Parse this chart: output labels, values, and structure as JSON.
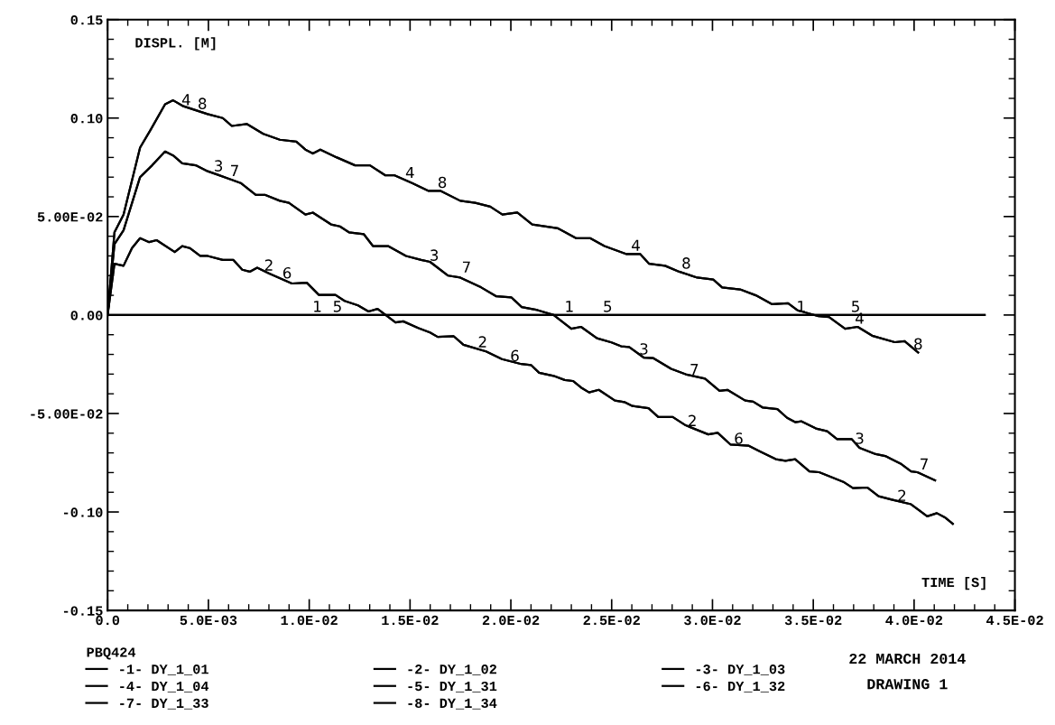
{
  "chart_data": {
    "type": "line",
    "ylabel": "DISPL. [M]",
    "xlabel": "TIME [S]",
    "legend_title": "PBQ424",
    "legend": "bottom",
    "grid": false,
    "marker": "none",
    "line_style": "solid",
    "xlim": [
      0,
      0.045
    ],
    "xticks": [
      {
        "value": 0,
        "label": "0.0"
      },
      {
        "value": 0.005,
        "label": "5.0E-03"
      },
      {
        "value": 0.01,
        "label": "1.0E-02"
      },
      {
        "value": 0.015,
        "label": "1.5E-02"
      },
      {
        "value": 0.02,
        "label": "2.0E-02"
      },
      {
        "value": 0.025,
        "label": "2.5E-02"
      },
      {
        "value": 0.03,
        "label": "3.0E-02"
      },
      {
        "value": 0.035,
        "label": "3.5E-02"
      },
      {
        "value": 0.04,
        "label": "4.0E-02"
      },
      {
        "value": 0.045,
        "label": "4.5E-02"
      }
    ],
    "ylim": [
      -0.15,
      0.15
    ],
    "yticks": [
      {
        "value": -0.15,
        "label": "-0.15"
      },
      {
        "value": -0.1,
        "label": "-0.10"
      },
      {
        "value": -0.05,
        "label": "-5.00E-02"
      },
      {
        "value": 0,
        "label": "0.00"
      },
      {
        "value": 0.05,
        "label": "5.00E-02"
      },
      {
        "value": 0.1,
        "label": "0.10"
      },
      {
        "value": 0.15,
        "label": "0.15"
      }
    ],
    "annotations": [
      "22 MARCH 2014",
      "DRAWING 1",
      {
        "text": "1",
        "x": 0.0104,
        "y": 0
      },
      {
        "text": "5",
        "x": 0.0114,
        "y": 0
      },
      {
        "text": "1",
        "x": 0.0229,
        "y": 0
      },
      {
        "text": "5",
        "x": 0.0248,
        "y": 0
      },
      {
        "text": "1",
        "x": 0.0344,
        "y": 0
      },
      {
        "text": "5",
        "x": 0.0371,
        "y": 0
      },
      {
        "text": "2",
        "x": 0.008,
        "y": 0.021
      },
      {
        "text": "6",
        "x": 0.0089,
        "y": 0.017
      },
      {
        "text": "2",
        "x": 0.0186,
        "y": -0.018
      },
      {
        "text": "6",
        "x": 0.0202,
        "y": -0.025
      },
      {
        "text": "2",
        "x": 0.029,
        "y": -0.058
      },
      {
        "text": "6",
        "x": 0.0313,
        "y": -0.067
      },
      {
        "text": "2",
        "x": 0.0394,
        "y": -0.096
      },
      {
        "text": "3",
        "x": 0.0055,
        "y": 0.0714
      },
      {
        "text": "7",
        "x": 0.0063,
        "y": 0.069
      },
      {
        "text": "3",
        "x": 0.0162,
        "y": 0.026
      },
      {
        "text": "7",
        "x": 0.0178,
        "y": 0.02
      },
      {
        "text": "3",
        "x": 0.0266,
        "y": -0.0216
      },
      {
        "text": "7",
        "x": 0.0291,
        "y": -0.032
      },
      {
        "text": "3",
        "x": 0.0373,
        "y": -0.067
      },
      {
        "text": "7",
        "x": 0.0405,
        "y": -0.08
      },
      {
        "text": "4",
        "x": 0.0039,
        "y": 0.105
      },
      {
        "text": "8",
        "x": 0.0047,
        "y": 0.103
      },
      {
        "text": "4",
        "x": 0.015,
        "y": 0.068
      },
      {
        "text": "8",
        "x": 0.0166,
        "y": 0.063
      },
      {
        "text": "4",
        "x": 0.0262,
        "y": 0.031
      },
      {
        "text": "8",
        "x": 0.0287,
        "y": 0.022
      },
      {
        "text": "4",
        "x": 0.0373,
        "y": -0.006
      },
      {
        "text": "8",
        "x": 0.0402,
        "y": -0.019
      }
    ],
    "series": [
      {
        "name": "-1- DY_1_01",
        "color": "#000000",
        "x": [
          0,
          0.0435
        ],
        "values": [
          0,
          0
        ]
      },
      {
        "name": "-2- DY_1_02",
        "color": "#000000",
        "x": [
          0,
          0.00034,
          0.00079,
          0.00121,
          0.00161,
          0.00206,
          0.00243,
          0.00333,
          0.0037,
          0.00407,
          0.00459,
          0.00496,
          0.00571,
          0.00623,
          0.00668,
          0.00705,
          0.00742,
          0.00802,
          0.00914,
          0.00988,
          0.01048,
          0.0113,
          0.01175,
          0.01242,
          0.01294,
          0.01339,
          0.01428,
          0.01466,
          0.0154,
          0.01599,
          0.01637,
          0.01717,
          0.01765,
          0.01877,
          0.01956,
          0.02052,
          0.021,
          0.0214,
          0.02212,
          0.02267,
          0.02308,
          0.02348,
          0.02388,
          0.02436,
          0.02516,
          0.02563,
          0.02603,
          0.02683,
          0.02731,
          0.02803,
          0.02867,
          0.02979,
          0.03026,
          0.0309,
          0.03178,
          0.03233,
          0.03314,
          0.03362,
          0.0341,
          0.03481,
          0.03529,
          0.03649,
          0.03697,
          0.03769,
          0.03824,
          0.03889,
          0.03985,
          0.04065,
          0.04113,
          0.04152,
          0.04192
        ],
        "values": [
          0,
          0.026,
          0.025,
          0.034,
          0.039,
          0.037,
          0.038,
          0.032,
          0.035,
          0.034,
          0.03,
          0.03,
          0.028,
          0.028,
          0.023,
          0.022,
          0.024,
          0.021,
          0.016,
          0.0164,
          0.0102,
          0.0102,
          0.0072,
          0.0049,
          0.0018,
          0.0031,
          -0.0038,
          -0.0032,
          -0.0066,
          -0.0089,
          -0.0111,
          -0.0108,
          -0.0151,
          -0.0185,
          -0.0224,
          -0.0249,
          -0.0254,
          -0.0293,
          -0.0309,
          -0.033,
          -0.0335,
          -0.0368,
          -0.0393,
          -0.038,
          -0.0434,
          -0.0442,
          -0.0462,
          -0.0473,
          -0.0518,
          -0.0518,
          -0.056,
          -0.0606,
          -0.0598,
          -0.0658,
          -0.0663,
          -0.0691,
          -0.0732,
          -0.074,
          -0.0732,
          -0.0794,
          -0.0798,
          -0.0847,
          -0.0879,
          -0.0876,
          -0.092,
          -0.0937,
          -0.0961,
          -0.1022,
          -0.1006,
          -0.1027,
          -0.106
        ]
      },
      {
        "name": "-3- DY_1_03",
        "color": "#000000",
        "x": [
          0,
          0.00034,
          0.00079,
          0.00161,
          0.00221,
          0.00285,
          0.00325,
          0.0037,
          0.00437,
          0.00496,
          0.00541,
          0.0066,
          0.00735,
          0.0078,
          0.00854,
          0.00899,
          0.00981,
          0.01018,
          0.01108,
          0.01152,
          0.01197,
          0.01271,
          0.01316,
          0.01391,
          0.0148,
          0.01555,
          0.01599,
          0.01689,
          0.01749,
          0.01853,
          0.01928,
          0.02002,
          0.02054,
          0.02132,
          0.02212,
          0.023,
          0.02348,
          0.02427,
          0.02499,
          0.02547,
          0.02587,
          0.02659,
          0.02707,
          0.02795,
          0.02867,
          0.02963,
          0.03035,
          0.03074,
          0.03162,
          0.03202,
          0.0325,
          0.03322,
          0.0337,
          0.0341,
          0.03442,
          0.03513,
          0.03569,
          0.03618,
          0.0369,
          0.03729,
          0.03809,
          0.03857,
          0.03937,
          0.03985,
          0.04016,
          0.04104
        ],
        "values": [
          0,
          0.036,
          0.043,
          0.07,
          0.076,
          0.083,
          0.081,
          0.077,
          0.076,
          0.073,
          0.0714,
          0.067,
          0.061,
          0.061,
          0.058,
          0.057,
          0.051,
          0.052,
          0.046,
          0.045,
          0.042,
          0.041,
          0.035,
          0.035,
          0.03,
          0.028,
          0.027,
          0.02,
          0.019,
          0.014,
          0.0095,
          0.009,
          0.004,
          0.0025,
          0,
          -0.007,
          -0.006,
          -0.0118,
          -0.0139,
          -0.0159,
          -0.0163,
          -0.0216,
          -0.0219,
          -0.0273,
          -0.0301,
          -0.0323,
          -0.0385,
          -0.038,
          -0.0434,
          -0.044,
          -0.047,
          -0.0478,
          -0.0522,
          -0.0544,
          -0.054,
          -0.0576,
          -0.059,
          -0.063,
          -0.063,
          -0.0674,
          -0.0706,
          -0.0716,
          -0.0757,
          -0.0794,
          -0.0798,
          -0.0839
        ]
      },
      {
        "name": "-4- DY_1_04",
        "color": "#000000",
        "x": [
          0,
          0.00034,
          0.00079,
          0.00161,
          0.00213,
          0.00285,
          0.00325,
          0.00376,
          0.00496,
          0.00571,
          0.00616,
          0.0069,
          0.00772,
          0.00854,
          0.00936,
          0.00981,
          0.01018,
          0.01055,
          0.01137,
          0.01227,
          0.01301,
          0.01376,
          0.01421,
          0.0151,
          0.01592,
          0.01652,
          0.01749,
          0.01823,
          0.01898,
          0.01958,
          0.02032,
          0.02106,
          0.02234,
          0.02323,
          0.02393,
          0.02464,
          0.02571,
          0.02641,
          0.02686,
          0.02765,
          0.02835,
          0.02924,
          0.03004,
          0.03048,
          0.03137,
          0.03215,
          0.03296,
          0.03375,
          0.0342,
          0.03526,
          0.03578,
          0.03658,
          0.0372,
          0.03792,
          0.03904,
          0.03953,
          0.0402
        ],
        "values": [
          0,
          0.042,
          0.051,
          0.085,
          0.094,
          0.107,
          0.109,
          0.106,
          0.102,
          0.1,
          0.096,
          0.097,
          0.092,
          0.089,
          0.088,
          0.084,
          0.082,
          0.084,
          0.08,
          0.076,
          0.076,
          0.071,
          0.071,
          0.067,
          0.063,
          0.063,
          0.058,
          0.057,
          0.055,
          0.051,
          0.052,
          0.046,
          0.044,
          0.039,
          0.039,
          0.035,
          0.031,
          0.031,
          0.026,
          0.025,
          0.022,
          0.019,
          0.018,
          0.014,
          0.013,
          0.01,
          0.0055,
          0.006,
          0.0025,
          -0.0006,
          -0.001,
          -0.007,
          -0.006,
          -0.0105,
          -0.0138,
          -0.0133,
          -0.019
        ]
      },
      {
        "name": "-5- DY_1_31",
        "color": "#000000",
        "x": [
          0,
          0.0435
        ],
        "values": [
          0,
          0
        ]
      },
      {
        "name": "-6- DY_1_32",
        "color": "#000000",
        "x": [
          0,
          0.00034,
          0.00079,
          0.00121,
          0.00161,
          0.00206,
          0.00243,
          0.00333,
          0.0037,
          0.00407,
          0.00459,
          0.00496,
          0.00571,
          0.00623,
          0.00668,
          0.00705,
          0.00742,
          0.00802,
          0.00914,
          0.00988,
          0.01048,
          0.0113,
          0.01175,
          0.01242,
          0.01294,
          0.01339,
          0.01428,
          0.01466,
          0.0154,
          0.01599,
          0.01637,
          0.01717,
          0.01765,
          0.01877,
          0.01956,
          0.02052,
          0.021,
          0.0214,
          0.02212,
          0.02267,
          0.02308,
          0.02348,
          0.02388,
          0.02436,
          0.02516,
          0.02563,
          0.02603,
          0.02683,
          0.02731,
          0.02803,
          0.02867,
          0.02979,
          0.03026,
          0.0309,
          0.03178,
          0.03233,
          0.03314,
          0.03362,
          0.0341,
          0.03481,
          0.03529,
          0.03649,
          0.03697,
          0.03769,
          0.03824,
          0.03889,
          0.03985,
          0.04065,
          0.04113,
          0.04152,
          0.04192
        ],
        "values": [
          0,
          0.026,
          0.025,
          0.034,
          0.039,
          0.037,
          0.038,
          0.032,
          0.035,
          0.034,
          0.03,
          0.03,
          0.028,
          0.028,
          0.023,
          0.022,
          0.024,
          0.021,
          0.016,
          0.0164,
          0.0102,
          0.0102,
          0.0072,
          0.0049,
          0.0018,
          0.0031,
          -0.0038,
          -0.0032,
          -0.0066,
          -0.0089,
          -0.0111,
          -0.0108,
          -0.0151,
          -0.0185,
          -0.0224,
          -0.0249,
          -0.0254,
          -0.0293,
          -0.0309,
          -0.033,
          -0.0335,
          -0.0368,
          -0.0393,
          -0.038,
          -0.0434,
          -0.0442,
          -0.0462,
          -0.0473,
          -0.0518,
          -0.0518,
          -0.056,
          -0.0606,
          -0.0598,
          -0.0658,
          -0.0663,
          -0.0691,
          -0.0732,
          -0.074,
          -0.0732,
          -0.0794,
          -0.0798,
          -0.0847,
          -0.0879,
          -0.0876,
          -0.092,
          -0.0937,
          -0.0961,
          -0.1022,
          -0.1006,
          -0.1027,
          -0.106
        ]
      },
      {
        "name": "-7- DY_1_33",
        "color": "#000000",
        "x": [
          0,
          0.00034,
          0.00079,
          0.00161,
          0.00221,
          0.00285,
          0.00325,
          0.0037,
          0.00437,
          0.00496,
          0.00541,
          0.0066,
          0.00735,
          0.0078,
          0.00854,
          0.00899,
          0.00981,
          0.01018,
          0.01108,
          0.01152,
          0.01197,
          0.01271,
          0.01316,
          0.01391,
          0.0148,
          0.01555,
          0.01599,
          0.01689,
          0.01749,
          0.01853,
          0.01928,
          0.02002,
          0.02054,
          0.02132,
          0.02212,
          0.023,
          0.02348,
          0.02427,
          0.02499,
          0.02547,
          0.02587,
          0.02659,
          0.02707,
          0.02795,
          0.02867,
          0.02963,
          0.03035,
          0.03074,
          0.03162,
          0.03202,
          0.0325,
          0.03322,
          0.0337,
          0.0341,
          0.03442,
          0.03513,
          0.03569,
          0.03618,
          0.0369,
          0.03729,
          0.03809,
          0.03857,
          0.03937,
          0.03985,
          0.04016,
          0.04104
        ],
        "values": [
          0,
          0.036,
          0.043,
          0.07,
          0.076,
          0.083,
          0.081,
          0.077,
          0.076,
          0.073,
          0.0714,
          0.067,
          0.061,
          0.061,
          0.058,
          0.057,
          0.051,
          0.052,
          0.046,
          0.045,
          0.042,
          0.041,
          0.035,
          0.035,
          0.03,
          0.028,
          0.027,
          0.02,
          0.019,
          0.014,
          0.0095,
          0.009,
          0.004,
          0.0025,
          0,
          -0.007,
          -0.006,
          -0.0118,
          -0.0139,
          -0.0159,
          -0.0163,
          -0.0216,
          -0.0219,
          -0.0273,
          -0.0301,
          -0.0323,
          -0.0385,
          -0.038,
          -0.0434,
          -0.044,
          -0.047,
          -0.0478,
          -0.0522,
          -0.0544,
          -0.054,
          -0.0576,
          -0.059,
          -0.063,
          -0.063,
          -0.0674,
          -0.0706,
          -0.0716,
          -0.0757,
          -0.0794,
          -0.0798,
          -0.0839
        ]
      },
      {
        "name": "-8- DY_1_34",
        "color": "#000000",
        "x": [
          0,
          0.00034,
          0.00079,
          0.00161,
          0.00213,
          0.00285,
          0.00325,
          0.00376,
          0.00496,
          0.00571,
          0.00616,
          0.0069,
          0.00772,
          0.00854,
          0.00936,
          0.00981,
          0.01018,
          0.01055,
          0.01137,
          0.01227,
          0.01301,
          0.01376,
          0.01421,
          0.0151,
          0.01592,
          0.01652,
          0.01749,
          0.01823,
          0.01898,
          0.01958,
          0.02032,
          0.02106,
          0.02234,
          0.02323,
          0.02393,
          0.02464,
          0.02571,
          0.02641,
          0.02686,
          0.02765,
          0.02835,
          0.02924,
          0.03004,
          0.03048,
          0.03137,
          0.03215,
          0.03296,
          0.03375,
          0.0342,
          0.03526,
          0.03578,
          0.03658,
          0.0372,
          0.03792,
          0.03904,
          0.03953,
          0.0402
        ],
        "values": [
          0,
          0.042,
          0.051,
          0.085,
          0.094,
          0.107,
          0.109,
          0.106,
          0.102,
          0.1,
          0.096,
          0.097,
          0.092,
          0.089,
          0.088,
          0.084,
          0.082,
          0.084,
          0.08,
          0.076,
          0.076,
          0.071,
          0.071,
          0.067,
          0.063,
          0.063,
          0.058,
          0.057,
          0.055,
          0.051,
          0.052,
          0.046,
          0.044,
          0.039,
          0.039,
          0.035,
          0.031,
          0.031,
          0.026,
          0.025,
          0.022,
          0.019,
          0.018,
          0.014,
          0.013,
          0.01,
          0.0055,
          0.006,
          0.0025,
          -0.0006,
          -0.001,
          -0.007,
          -0.006,
          -0.0105,
          -0.0138,
          -0.0133,
          -0.019
        ]
      }
    ]
  }
}
